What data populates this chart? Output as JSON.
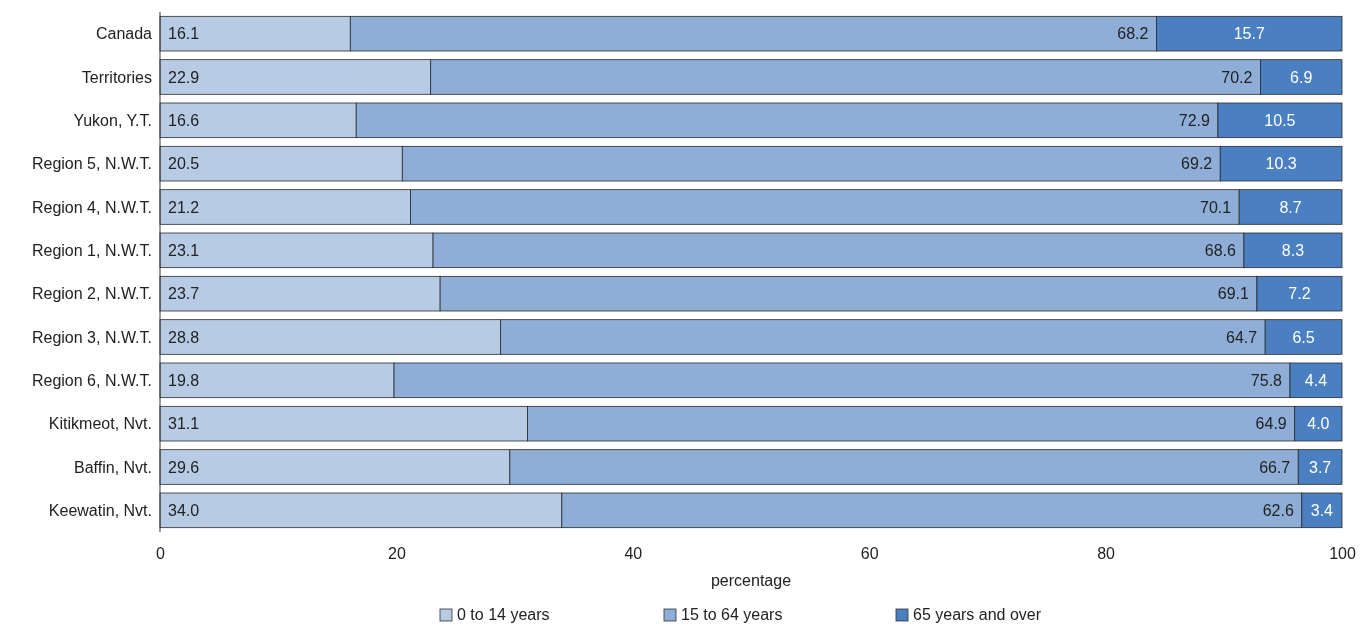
{
  "chart_data": {
    "type": "bar",
    "orientation": "horizontal",
    "stacked": true,
    "xlabel": "percentage",
    "categories": [
      "Canada",
      "Territories",
      "Yukon, Y.T.",
      "Region 5, N.W.T.",
      "Region 4, N.W.T.",
      "Region 1, N.W.T.",
      "Region 2, N.W.T.",
      "Region 3, N.W.T.",
      "Region 6, N.W.T.",
      "Kitikmeot, Nvt.",
      "Baffin, Nvt.",
      "Keewatin, Nvt."
    ],
    "series": [
      {
        "name": "0 to 14 years",
        "color": "#b8cbe4",
        "values": [
          16.1,
          22.9,
          16.6,
          20.5,
          21.2,
          23.1,
          23.7,
          28.8,
          19.8,
          31.1,
          29.6,
          34.0
        ],
        "value_labels": [
          "16.1",
          "22.9",
          "16.6",
          "20.5",
          "21.2",
          "23.1",
          "23.7",
          "28.8",
          "19.8",
          "31.1",
          "29.6",
          "34.0"
        ]
      },
      {
        "name": "15 to 64 years",
        "color": "#8eaed8",
        "values": [
          68.2,
          70.2,
          72.9,
          69.2,
          70.1,
          68.6,
          69.1,
          64.7,
          75.8,
          64.9,
          66.7,
          62.6
        ],
        "value_labels": [
          "68.2",
          "70.2",
          "72.9",
          "69.2",
          "70.1",
          "68.6",
          "69.1",
          "64.7",
          "75.8",
          "64.9",
          "66.7",
          "62.6"
        ]
      },
      {
        "name": "65 years and over",
        "color": "#4a7fc1",
        "values": [
          15.7,
          6.9,
          10.5,
          10.3,
          8.7,
          8.3,
          7.2,
          6.5,
          4.4,
          4.0,
          3.7,
          3.4
        ],
        "value_labels": [
          "15.7",
          "6.9",
          "10.5",
          "10.3",
          "8.7",
          "8.3",
          "7.2",
          "6.5",
          "4.4",
          "4.0",
          "3.7",
          "3.4"
        ]
      }
    ],
    "xlim": [
      0,
      100
    ],
    "xticks": [
      0,
      20,
      40,
      60,
      80,
      100
    ],
    "grid": false,
    "legend": "bottom"
  }
}
